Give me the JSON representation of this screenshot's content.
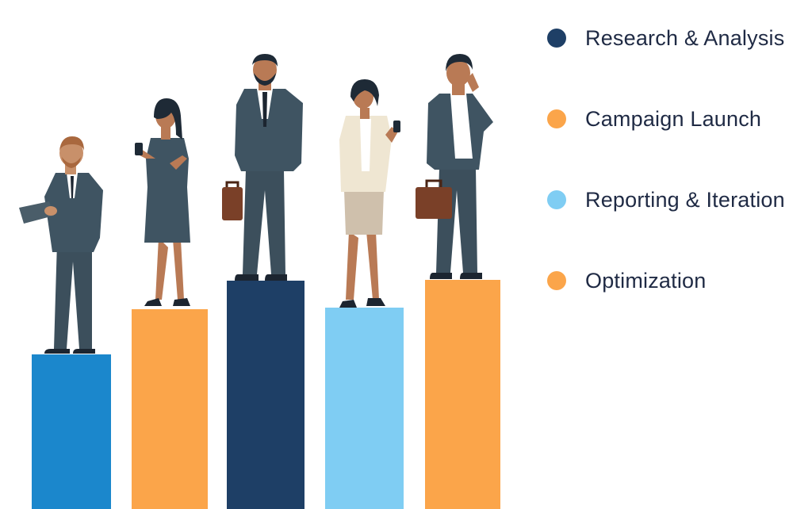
{
  "legend": {
    "items": [
      {
        "label": "Research & Analysis",
        "color": "#1e3f66"
      },
      {
        "label": "Campaign Launch",
        "color": "#fba54a"
      },
      {
        "label": "Reporting & Iteration",
        "color": "#7fcdf3"
      },
      {
        "label": "Optimization",
        "color": "#fba54a"
      }
    ]
  },
  "bars": [
    {
      "color": "#1b87cc",
      "level": 0.3
    },
    {
      "color": "#fba54a",
      "level": 0.39
    },
    {
      "color": "#1e3f66",
      "level": 0.45
    },
    {
      "color": "#7fcdf3",
      "level": 0.39
    },
    {
      "color": "#fba54a",
      "level": 0.45
    }
  ],
  "icons": {
    "people": [
      "businessman-tablet-icon",
      "woman-phone-icon",
      "businessman-briefcase-icon",
      "woman-phone-icon",
      "man-phone-call-icon"
    ]
  }
}
